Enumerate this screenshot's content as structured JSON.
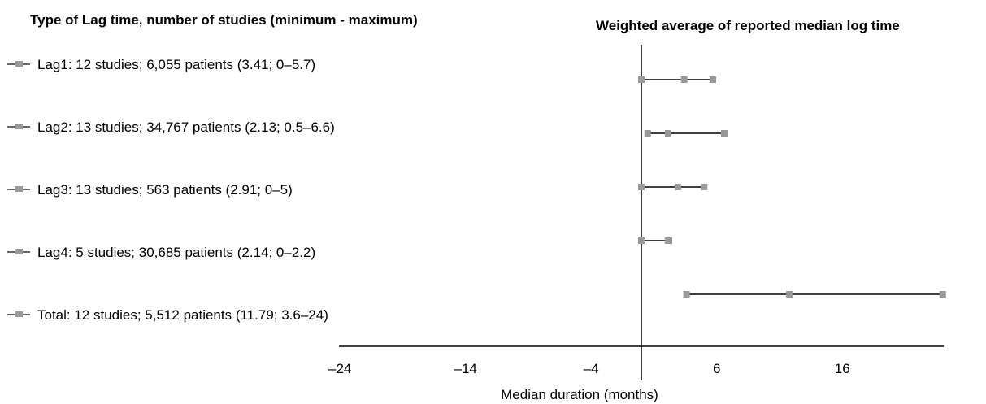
{
  "chart_data": {
    "type": "forest",
    "title_left": "Type of Lag time, number of studies (minimum - maximum)",
    "title_right": "Weighted average of reported median log time",
    "xlabel": "Median duration (months)",
    "xlim": [
      -24,
      24
    ],
    "xticks": [
      "–24",
      "–14",
      "–4",
      "6",
      "16"
    ],
    "xtick_values": [
      -24,
      -14,
      -4,
      6,
      16
    ],
    "marker_color": "#999999",
    "line_color": "#000000",
    "rows": [
      {
        "label": "Lag1: 12 studies; 6,055 patients (3.41; 0–5.7)",
        "mean": 3.41,
        "min": 0,
        "max": 5.7
      },
      {
        "label": "Lag2: 13 studies; 34,767 patients (2.13; 0.5–6.6)",
        "mean": 2.13,
        "min": 0.5,
        "max": 6.6
      },
      {
        "label": "Lag3: 13 studies; 563 patients (2.91; 0–5)",
        "mean": 2.91,
        "min": 0,
        "max": 5
      },
      {
        "label": "Lag4: 5 studies; 30,685 patients (2.14; 0–2.2)",
        "mean": 2.14,
        "min": 0,
        "max": 2.2
      },
      {
        "label": "Total: 12 studies; 5,512 patients (11.79; 3.6–24)",
        "mean": 11.79,
        "min": 3.6,
        "max": 24
      }
    ]
  }
}
